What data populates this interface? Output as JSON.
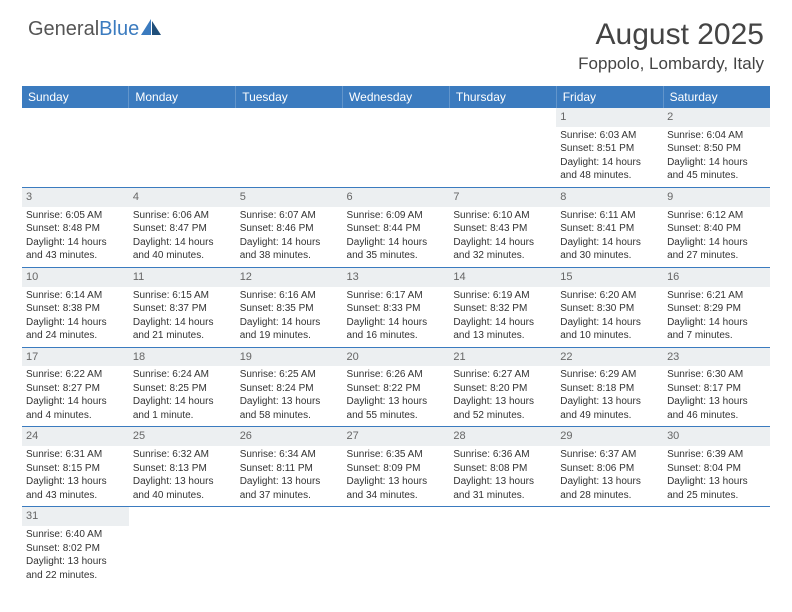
{
  "brand": {
    "part1": "General",
    "part2": "Blue"
  },
  "title": "August 2025",
  "location": "Foppolo, Lombardy, Italy",
  "colors": {
    "header_bg": "#3b7bbf",
    "header_text": "#ffffff",
    "daynum_bg": "#eceff1",
    "daynum_text": "#666666",
    "cell_text": "#333333",
    "divider": "#3b7bbf",
    "page_bg": "#ffffff"
  },
  "typography": {
    "title_fontsize": 30,
    "location_fontsize": 17,
    "weekday_fontsize": 12,
    "daynum_fontsize": 11,
    "cell_fontsize": 10
  },
  "weekdays": [
    "Sunday",
    "Monday",
    "Tuesday",
    "Wednesday",
    "Thursday",
    "Friday",
    "Saturday"
  ],
  "weeks": [
    [
      {
        "empty": true
      },
      {
        "empty": true
      },
      {
        "empty": true
      },
      {
        "empty": true
      },
      {
        "empty": true
      },
      {
        "day": "1",
        "sunrise": "Sunrise: 6:03 AM",
        "sunset": "Sunset: 8:51 PM",
        "daylight1": "Daylight: 14 hours",
        "daylight2": "and 48 minutes."
      },
      {
        "day": "2",
        "sunrise": "Sunrise: 6:04 AM",
        "sunset": "Sunset: 8:50 PM",
        "daylight1": "Daylight: 14 hours",
        "daylight2": "and 45 minutes."
      }
    ],
    [
      {
        "day": "3",
        "sunrise": "Sunrise: 6:05 AM",
        "sunset": "Sunset: 8:48 PM",
        "daylight1": "Daylight: 14 hours",
        "daylight2": "and 43 minutes."
      },
      {
        "day": "4",
        "sunrise": "Sunrise: 6:06 AM",
        "sunset": "Sunset: 8:47 PM",
        "daylight1": "Daylight: 14 hours",
        "daylight2": "and 40 minutes."
      },
      {
        "day": "5",
        "sunrise": "Sunrise: 6:07 AM",
        "sunset": "Sunset: 8:46 PM",
        "daylight1": "Daylight: 14 hours",
        "daylight2": "and 38 minutes."
      },
      {
        "day": "6",
        "sunrise": "Sunrise: 6:09 AM",
        "sunset": "Sunset: 8:44 PM",
        "daylight1": "Daylight: 14 hours",
        "daylight2": "and 35 minutes."
      },
      {
        "day": "7",
        "sunrise": "Sunrise: 6:10 AM",
        "sunset": "Sunset: 8:43 PM",
        "daylight1": "Daylight: 14 hours",
        "daylight2": "and 32 minutes."
      },
      {
        "day": "8",
        "sunrise": "Sunrise: 6:11 AM",
        "sunset": "Sunset: 8:41 PM",
        "daylight1": "Daylight: 14 hours",
        "daylight2": "and 30 minutes."
      },
      {
        "day": "9",
        "sunrise": "Sunrise: 6:12 AM",
        "sunset": "Sunset: 8:40 PM",
        "daylight1": "Daylight: 14 hours",
        "daylight2": "and 27 minutes."
      }
    ],
    [
      {
        "day": "10",
        "sunrise": "Sunrise: 6:14 AM",
        "sunset": "Sunset: 8:38 PM",
        "daylight1": "Daylight: 14 hours",
        "daylight2": "and 24 minutes."
      },
      {
        "day": "11",
        "sunrise": "Sunrise: 6:15 AM",
        "sunset": "Sunset: 8:37 PM",
        "daylight1": "Daylight: 14 hours",
        "daylight2": "and 21 minutes."
      },
      {
        "day": "12",
        "sunrise": "Sunrise: 6:16 AM",
        "sunset": "Sunset: 8:35 PM",
        "daylight1": "Daylight: 14 hours",
        "daylight2": "and 19 minutes."
      },
      {
        "day": "13",
        "sunrise": "Sunrise: 6:17 AM",
        "sunset": "Sunset: 8:33 PM",
        "daylight1": "Daylight: 14 hours",
        "daylight2": "and 16 minutes."
      },
      {
        "day": "14",
        "sunrise": "Sunrise: 6:19 AM",
        "sunset": "Sunset: 8:32 PM",
        "daylight1": "Daylight: 14 hours",
        "daylight2": "and 13 minutes."
      },
      {
        "day": "15",
        "sunrise": "Sunrise: 6:20 AM",
        "sunset": "Sunset: 8:30 PM",
        "daylight1": "Daylight: 14 hours",
        "daylight2": "and 10 minutes."
      },
      {
        "day": "16",
        "sunrise": "Sunrise: 6:21 AM",
        "sunset": "Sunset: 8:29 PM",
        "daylight1": "Daylight: 14 hours",
        "daylight2": "and 7 minutes."
      }
    ],
    [
      {
        "day": "17",
        "sunrise": "Sunrise: 6:22 AM",
        "sunset": "Sunset: 8:27 PM",
        "daylight1": "Daylight: 14 hours",
        "daylight2": "and 4 minutes."
      },
      {
        "day": "18",
        "sunrise": "Sunrise: 6:24 AM",
        "sunset": "Sunset: 8:25 PM",
        "daylight1": "Daylight: 14 hours",
        "daylight2": "and 1 minute."
      },
      {
        "day": "19",
        "sunrise": "Sunrise: 6:25 AM",
        "sunset": "Sunset: 8:24 PM",
        "daylight1": "Daylight: 13 hours",
        "daylight2": "and 58 minutes."
      },
      {
        "day": "20",
        "sunrise": "Sunrise: 6:26 AM",
        "sunset": "Sunset: 8:22 PM",
        "daylight1": "Daylight: 13 hours",
        "daylight2": "and 55 minutes."
      },
      {
        "day": "21",
        "sunrise": "Sunrise: 6:27 AM",
        "sunset": "Sunset: 8:20 PM",
        "daylight1": "Daylight: 13 hours",
        "daylight2": "and 52 minutes."
      },
      {
        "day": "22",
        "sunrise": "Sunrise: 6:29 AM",
        "sunset": "Sunset: 8:18 PM",
        "daylight1": "Daylight: 13 hours",
        "daylight2": "and 49 minutes."
      },
      {
        "day": "23",
        "sunrise": "Sunrise: 6:30 AM",
        "sunset": "Sunset: 8:17 PM",
        "daylight1": "Daylight: 13 hours",
        "daylight2": "and 46 minutes."
      }
    ],
    [
      {
        "day": "24",
        "sunrise": "Sunrise: 6:31 AM",
        "sunset": "Sunset: 8:15 PM",
        "daylight1": "Daylight: 13 hours",
        "daylight2": "and 43 minutes."
      },
      {
        "day": "25",
        "sunrise": "Sunrise: 6:32 AM",
        "sunset": "Sunset: 8:13 PM",
        "daylight1": "Daylight: 13 hours",
        "daylight2": "and 40 minutes."
      },
      {
        "day": "26",
        "sunrise": "Sunrise: 6:34 AM",
        "sunset": "Sunset: 8:11 PM",
        "daylight1": "Daylight: 13 hours",
        "daylight2": "and 37 minutes."
      },
      {
        "day": "27",
        "sunrise": "Sunrise: 6:35 AM",
        "sunset": "Sunset: 8:09 PM",
        "daylight1": "Daylight: 13 hours",
        "daylight2": "and 34 minutes."
      },
      {
        "day": "28",
        "sunrise": "Sunrise: 6:36 AM",
        "sunset": "Sunset: 8:08 PM",
        "daylight1": "Daylight: 13 hours",
        "daylight2": "and 31 minutes."
      },
      {
        "day": "29",
        "sunrise": "Sunrise: 6:37 AM",
        "sunset": "Sunset: 8:06 PM",
        "daylight1": "Daylight: 13 hours",
        "daylight2": "and 28 minutes."
      },
      {
        "day": "30",
        "sunrise": "Sunrise: 6:39 AM",
        "sunset": "Sunset: 8:04 PM",
        "daylight1": "Daylight: 13 hours",
        "daylight2": "and 25 minutes."
      }
    ],
    [
      {
        "day": "31",
        "sunrise": "Sunrise: 6:40 AM",
        "sunset": "Sunset: 8:02 PM",
        "daylight1": "Daylight: 13 hours",
        "daylight2": "and 22 minutes."
      },
      {
        "empty": true
      },
      {
        "empty": true
      },
      {
        "empty": true
      },
      {
        "empty": true
      },
      {
        "empty": true
      },
      {
        "empty": true
      }
    ]
  ]
}
